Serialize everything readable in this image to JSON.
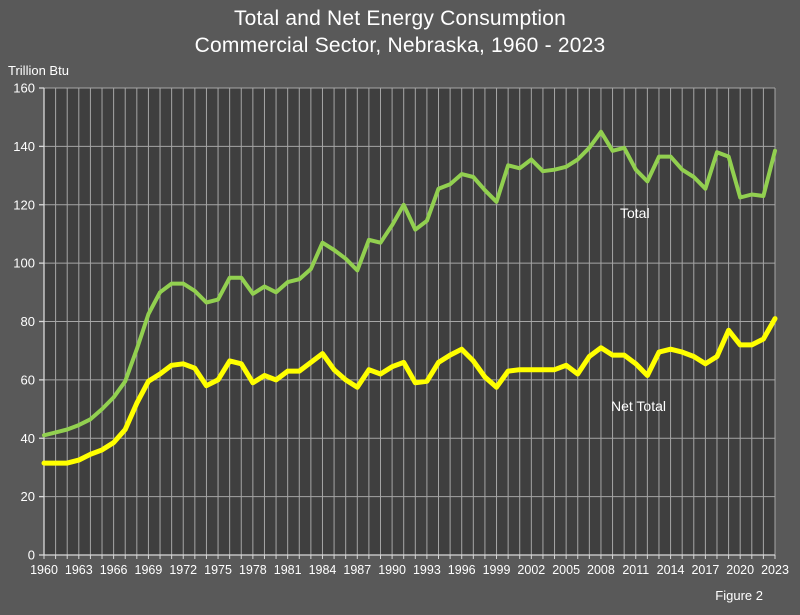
{
  "title": {
    "line1": "Total and Net Energy Consumption",
    "line2": "Commercial Sector, Nebraska, 1960 - 2023"
  },
  "unit_label": "Trillion Btu",
  "figure_caption": "Figure 2",
  "series_labels": {
    "total": "Total",
    "net": "Net Total"
  },
  "colors": {
    "page_background": "#595959",
    "plot_background": "#3f3f3f",
    "gridline": "#a6a6a6",
    "axis": "#d9d9d9",
    "text": "#ffffff",
    "total_line": "#92d050",
    "net_line": "#ffff00"
  },
  "chart_data": {
    "type": "line",
    "title": "Total and Net Energy Consumption — Commercial Sector, Nebraska, 1960 - 2023",
    "xlabel": "",
    "ylabel": "Trillion Btu",
    "ylim": [
      0,
      160
    ],
    "y_tick_step": 20,
    "grid": true,
    "legend": "inline-labels",
    "x": [
      1960,
      1961,
      1962,
      1963,
      1964,
      1965,
      1966,
      1967,
      1968,
      1969,
      1970,
      1971,
      1972,
      1973,
      1974,
      1975,
      1976,
      1977,
      1978,
      1979,
      1980,
      1981,
      1982,
      1983,
      1984,
      1985,
      1986,
      1987,
      1988,
      1989,
      1990,
      1991,
      1992,
      1993,
      1994,
      1995,
      1996,
      1997,
      1998,
      1999,
      2000,
      2001,
      2002,
      2003,
      2004,
      2005,
      2006,
      2007,
      2008,
      2009,
      2010,
      2011,
      2012,
      2013,
      2014,
      2015,
      2016,
      2017,
      2018,
      2019,
      2020,
      2021,
      2022,
      2023
    ],
    "x_tick_labels": [
      "1960",
      "1963",
      "1966",
      "1969",
      "1972",
      "1975",
      "1978",
      "1981",
      "1984",
      "1987",
      "1990",
      "1993",
      "1996",
      "1999",
      "2002",
      "2005",
      "2008",
      "2011",
      "2014",
      "2017",
      "2020",
      "2023"
    ],
    "series": [
      {
        "name": "Total",
        "color": "#92d050",
        "values": [
          41,
          42,
          43,
          44.5,
          46.5,
          50,
          54,
          59.5,
          70.5,
          82.5,
          90,
          93,
          93,
          90.5,
          86.5,
          87.5,
          95,
          95,
          89.5,
          92,
          90,
          93.5,
          94.5,
          98,
          107,
          104.5,
          101.5,
          97.5,
          108,
          107,
          113,
          120,
          111.5,
          114.5,
          125.5,
          127,
          130.5,
          129.5,
          125,
          121,
          133.5,
          132.5,
          135.5,
          131.5,
          132,
          133,
          135.5,
          139.5,
          145,
          138.5,
          139.5,
          132,
          128,
          136.5,
          136.5,
          132,
          129.5,
          125.5,
          138,
          136.5,
          122.5,
          123.5,
          123,
          138.5
        ]
      },
      {
        "name": "Net Total",
        "color": "#ffff00",
        "values": [
          31.5,
          31.5,
          31.5,
          32.5,
          34.5,
          36,
          38.5,
          43,
          52,
          59.5,
          62,
          65,
          65.5,
          64,
          58,
          60,
          66.5,
          65.5,
          59,
          61.5,
          60,
          63,
          63,
          66,
          69,
          63.5,
          60,
          57.5,
          63.5,
          62,
          64.5,
          66,
          59,
          59.5,
          66,
          68.5,
          70.5,
          66.5,
          61,
          57.5,
          63,
          63.5,
          63.5,
          63.5,
          63.5,
          65,
          62,
          68,
          71,
          68.5,
          68.5,
          65.5,
          61.5,
          69.5,
          70.5,
          69.5,
          68,
          65.5,
          68,
          77,
          72,
          72,
          74,
          81
        ]
      }
    ]
  }
}
